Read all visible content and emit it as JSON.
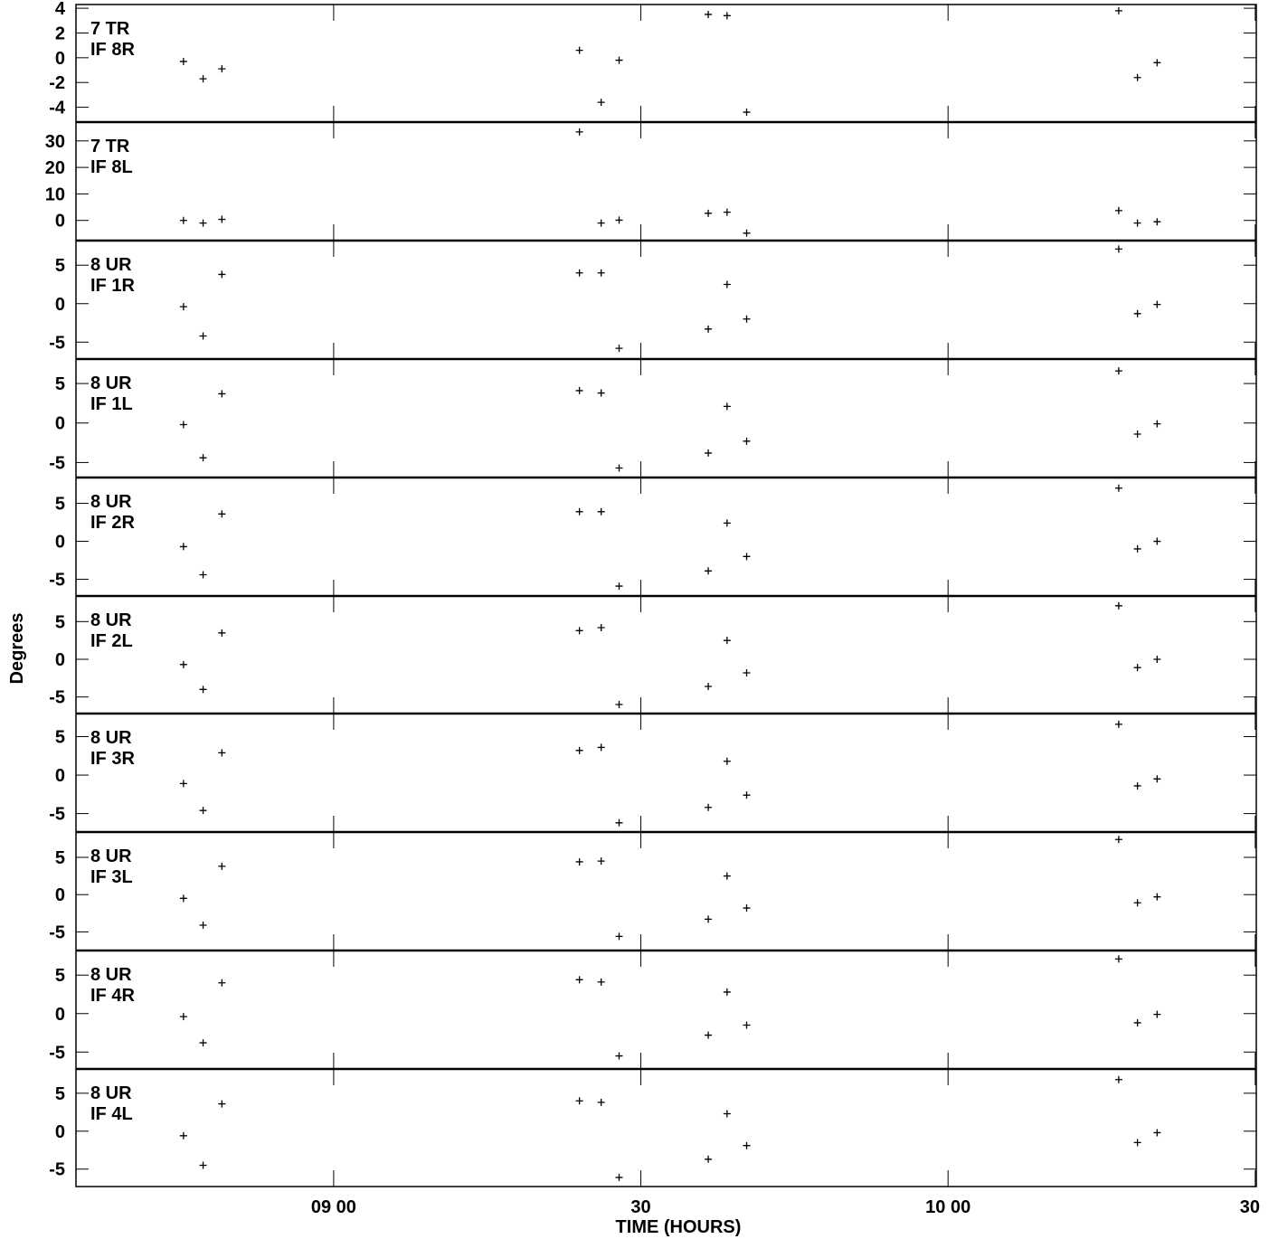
{
  "chart_data": {
    "type": "scatter",
    "xlabel": "TIME (HOURS)",
    "ylabel": "Degrees",
    "x_unit": "hours",
    "xlim": [
      8.5806,
      10.5017
    ],
    "x_ticks": [
      {
        "value": 9.0,
        "label": "09 00"
      },
      {
        "value": 9.5,
        "label": "30"
      },
      {
        "value": 10.0,
        "label": "10 00"
      },
      {
        "value": 10.5,
        "label": "30"
      }
    ],
    "x": [
      8.7556,
      8.7875,
      8.8181,
      9.4,
      9.4354,
      9.4646,
      9.6097,
      9.6403,
      9.6722,
      10.2778,
      10.3083,
      10.3403
    ],
    "panels": [
      {
        "label1": "7 TR",
        "label2": "IF 8R",
        "ylim": [
          -5.2,
          4.3
        ],
        "ticks": [
          4,
          2,
          0,
          -2,
          -4
        ],
        "tick_labels": [
          "4",
          "2",
          "0",
          "-2",
          "-4"
        ],
        "y": [
          -0.3,
          -1.7,
          -0.9,
          0.6,
          -3.6,
          -0.2,
          3.5,
          3.4,
          -4.4,
          3.8,
          -1.6,
          -0.4
        ]
      },
      {
        "label1": "7 TR",
        "label2": "IF 8L",
        "ylim": [
          -7.6,
          37.1
        ],
        "ticks": [
          30,
          20,
          10,
          0
        ],
        "tick_labels": [
          "30",
          "20",
          "10",
          "0"
        ],
        "y": [
          0.0,
          -1.0,
          0.4,
          33.4,
          -1.0,
          0.1,
          2.7,
          3.1,
          -4.8,
          3.7,
          -1.0,
          -0.5
        ]
      },
      {
        "label1": "8 UR",
        "label2": "IF 1R",
        "ylim": [
          -7.2,
          8.2
        ],
        "ticks": [
          5,
          0,
          -5
        ],
        "tick_labels": [
          "5",
          "0",
          "-5"
        ],
        "y": [
          -0.4,
          -4.2,
          3.8,
          4.0,
          4.0,
          -5.8,
          -3.3,
          2.5,
          -2.0,
          7.1,
          -1.3,
          -0.1
        ]
      },
      {
        "label1": "8 UR",
        "label2": "IF 1L",
        "ylim": [
          -6.9,
          8.1
        ],
        "ticks": [
          5,
          0,
          -5
        ],
        "tick_labels": [
          "5",
          "0",
          "-5"
        ],
        "y": [
          -0.2,
          -4.4,
          3.7,
          4.1,
          3.8,
          -5.7,
          -3.8,
          2.1,
          -2.3,
          6.6,
          -1.4,
          -0.1
        ]
      },
      {
        "label1": "8 UR",
        "label2": "IF 2R",
        "ylim": [
          -7.2,
          8.4
        ],
        "ticks": [
          5,
          0,
          -5
        ],
        "tick_labels": [
          "5",
          "0",
          "-5"
        ],
        "y": [
          -0.7,
          -4.4,
          3.6,
          3.9,
          3.9,
          -5.9,
          -3.9,
          2.4,
          -2.0,
          7.0,
          -1.0,
          0.0
        ]
      },
      {
        "label1": "8 UR",
        "label2": "IF 2L",
        "ylim": [
          -7.2,
          8.4
        ],
        "ticks": [
          5,
          0,
          -5
        ],
        "tick_labels": [
          "5",
          "0",
          "-5"
        ],
        "y": [
          -0.7,
          -4.0,
          3.5,
          3.8,
          4.2,
          -6.0,
          -3.6,
          2.5,
          -1.8,
          7.1,
          -1.1,
          0.0
        ]
      },
      {
        "label1": "8 UR",
        "label2": "IF 3R",
        "ylim": [
          -7.4,
          8.0
        ],
        "ticks": [
          5,
          0,
          -5
        ],
        "tick_labels": [
          "5",
          "0",
          "-5"
        ],
        "y": [
          -1.1,
          -4.6,
          2.9,
          3.2,
          3.6,
          -6.2,
          -4.2,
          1.8,
          -2.6,
          6.6,
          -1.4,
          -0.5
        ]
      },
      {
        "label1": "8 UR",
        "label2": "IF 3L",
        "ylim": [
          -7.5,
          8.4
        ],
        "ticks": [
          5,
          0,
          -5
        ],
        "tick_labels": [
          "5",
          "0",
          "-5"
        ],
        "y": [
          -0.5,
          -4.1,
          3.8,
          4.4,
          4.5,
          -5.6,
          -3.3,
          2.5,
          -1.8,
          7.4,
          -1.1,
          -0.3
        ]
      },
      {
        "label1": "8 UR",
        "label2": "IF 4R",
        "ylim": [
          -7.2,
          8.2
        ],
        "ticks": [
          5,
          0,
          -5
        ],
        "tick_labels": [
          "5",
          "0",
          "-5"
        ],
        "y": [
          -0.4,
          -3.8,
          4.0,
          4.4,
          4.1,
          -5.5,
          -2.8,
          2.8,
          -1.5,
          7.1,
          -1.2,
          -0.1
        ]
      },
      {
        "label1": "8 UR",
        "label2": "IF 4L",
        "ylim": [
          -7.3,
          8.2
        ],
        "ticks": [
          5,
          0,
          -5
        ],
        "tick_labels": [
          "5",
          "0",
          "-5"
        ],
        "y": [
          -0.6,
          -4.5,
          3.6,
          4.0,
          3.8,
          -6.1,
          -3.7,
          2.3,
          -1.9,
          6.8,
          -1.5,
          -0.2
        ]
      }
    ]
  }
}
